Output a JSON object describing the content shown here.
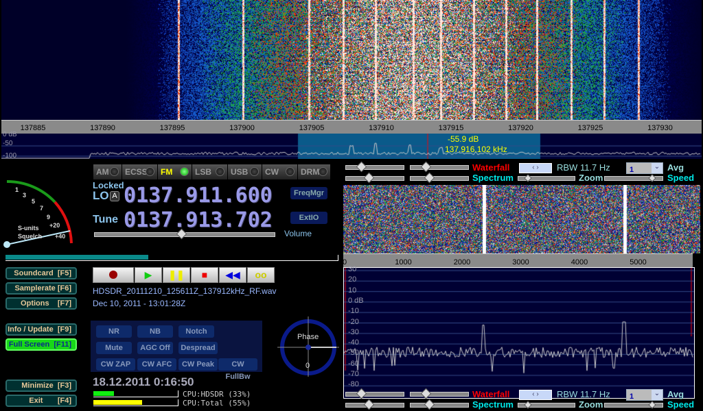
{
  "main_display": {
    "freq_ticks": [
      "137885",
      "137890",
      "137895",
      "137900",
      "137905",
      "137910",
      "137915",
      "137920",
      "137925",
      "137930"
    ],
    "level_labels": [
      "0 dB",
      "-50",
      "-100"
    ],
    "cursor_level": "-55.9 dB",
    "cursor_freq": "137.916.102 kHz"
  },
  "modes": [
    {
      "label": "AM",
      "active": false
    },
    {
      "label": "ECSS",
      "active": false
    },
    {
      "label": "FM",
      "active": true
    },
    {
      "label": "LSB",
      "active": false
    },
    {
      "label": "USB",
      "active": false
    },
    {
      "label": "CW",
      "active": false
    },
    {
      "label": "DRM",
      "active": false
    }
  ],
  "smeter": {
    "scale": [
      "1",
      "3",
      "5",
      "7",
      "9",
      "+20",
      "+40"
    ],
    "label1": "S-units",
    "label2": "Squelch"
  },
  "lo": {
    "locked_label": "Locked",
    "label": "LO",
    "badge": "A",
    "value": "0137.911.600"
  },
  "tune": {
    "label": "Tune",
    "value": "0137.913.702"
  },
  "freqmgr_label": "FreqMgr",
  "extio_label": "ExtIO",
  "volume": {
    "label": "Volume",
    "level_pct": 48
  },
  "side_buttons": [
    {
      "label": "Soundcard  [F5]"
    },
    {
      "label": "Samplerate [F6]"
    },
    {
      "label": "Options    [F7]"
    },
    {
      "label": "Info / Update  [F9]"
    },
    {
      "label": "Full Screen  [F11]"
    },
    {
      "label": "Minimize  [F3]"
    },
    {
      "label": "Exit       [F4]"
    }
  ],
  "transport": [
    "record",
    "play",
    "pause",
    "stop",
    "rewind",
    "loop"
  ],
  "file": {
    "name": "HDSDR_20111210_125611Z_137912kHz_RF.wav",
    "date": "Dec 10, 2011 - 13:01:28Z"
  },
  "dsp_buttons": [
    "NR",
    "NB",
    "Notch",
    "Mute",
    "AGC Off",
    "Despread",
    "CW ZAP",
    "CW AFC",
    "CW Peak",
    "CW FullBw"
  ],
  "phase": {
    "label": "Phase",
    "value": "0"
  },
  "clock": "18.12.2011 0:16:50",
  "cpu": {
    "hdsdr": "CPU:HDSDR (33%)",
    "hdsdr_pct": 33,
    "total": "CPU:Total (55%)",
    "total_pct": 55
  },
  "audio_display": {
    "ticks": [
      "0",
      "1000",
      "2000",
      "3000",
      "4000",
      "5000"
    ],
    "db_labels": [
      "30",
      "20",
      "10",
      "0 dB",
      "-10",
      "-20",
      "-30",
      "-40",
      "-50",
      "-60",
      "-70",
      "-80"
    ]
  },
  "controls": {
    "waterfall": "Waterfall",
    "spectrum": "Spectrum",
    "zoom": "Zoom",
    "speed": "Speed",
    "rbw": "RBW 11.7 Hz",
    "avg_value": "1",
    "avg": "Avg"
  },
  "colors": {
    "waterfall_label": "#ff0000",
    "spectrum_label": "#00e8e8",
    "panel_bg": "#000033",
    "highlight": "#0a5a8a"
  }
}
